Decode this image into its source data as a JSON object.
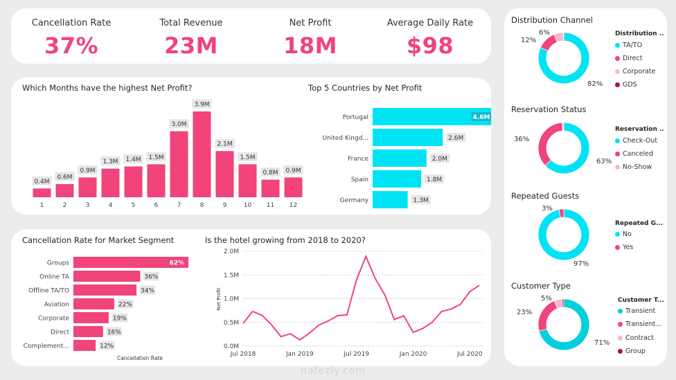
{
  "kpis": [
    {
      "label": "Cancellation Rate",
      "value": "37%"
    },
    {
      "label": "Total Revenue",
      "value": "23M"
    },
    {
      "label": "Net Profit",
      "value": "18M"
    },
    {
      "label": "Average Daily Rate",
      "value": "$98"
    }
  ],
  "colors": {
    "pink": "#f0447a",
    "cyan": "#00e3f5",
    "lightpink": "#f9b6cd",
    "maroon": "#a31545",
    "teal": "#00cfdd"
  },
  "chart_data": [
    {
      "id": "months",
      "type": "bar",
      "title": "Which Months have the highest Net Profit?",
      "categories": [
        "1",
        "2",
        "3",
        "4",
        "5",
        "6",
        "7",
        "8",
        "9",
        "10",
        "11",
        "12"
      ],
      "values": [
        0.4,
        0.6,
        0.9,
        1.3,
        1.4,
        1.5,
        3.0,
        3.9,
        2.1,
        1.5,
        0.8,
        0.9
      ],
      "labels": [
        "0.4M",
        "0.6M",
        "0.9M",
        "1.3M",
        "1.4M",
        "1.5M",
        "3.0M",
        "3.9M",
        "2.1M",
        "1.5M",
        "0.8M",
        "0.9M"
      ],
      "ylim": [
        0,
        3.9
      ]
    },
    {
      "id": "countries",
      "type": "bar",
      "orientation": "horizontal",
      "title": "Top 5 Countries by Net Profit",
      "categories": [
        "Portugal",
        "United Kingd...",
        "France",
        "Spain",
        "Germany"
      ],
      "values": [
        4.6,
        2.6,
        2.0,
        1.8,
        1.3
      ],
      "labels": [
        "4.6M",
        "2.6M",
        "2.0M",
        "1.8M",
        "1.3M"
      ],
      "xlim": [
        0,
        4.6
      ]
    },
    {
      "id": "segments",
      "type": "bar",
      "orientation": "horizontal",
      "title": "Cancellation Rate for Market Segment",
      "xlabel": "Cancellation Rate",
      "categories": [
        "Groups",
        "Online TA",
        "Offline TA/TO",
        "Aviation",
        "Corporate",
        "Direct",
        "Complement..."
      ],
      "values": [
        62,
        36,
        34,
        22,
        19,
        16,
        12
      ],
      "labels": [
        "62%",
        "36%",
        "34%",
        "22%",
        "19%",
        "16%",
        "12%"
      ],
      "xlim": [
        0,
        62
      ]
    },
    {
      "id": "growth",
      "type": "line",
      "title": "Is the hotel growing from 2018 to 2020?",
      "ylabel": "Net Profit",
      "xticks": [
        "Jul 2018",
        "Jan 2019",
        "Jul 2019",
        "Jan 2020",
        "Jul 2020"
      ],
      "yticks": [
        "0.0M",
        "0.5M",
        "1.0M",
        "1.5M",
        "2.0M"
      ],
      "ylim": [
        0,
        2.0
      ],
      "x": [
        "2018-07",
        "2018-08",
        "2018-09",
        "2018-10",
        "2018-11",
        "2018-12",
        "2019-01",
        "2019-02",
        "2019-03",
        "2019-04",
        "2019-05",
        "2019-06",
        "2019-07",
        "2019-08",
        "2019-09",
        "2019-10",
        "2019-11",
        "2019-12",
        "2020-01",
        "2020-02",
        "2020-03",
        "2020-04",
        "2020-05",
        "2020-06",
        "2020-07",
        "2020-08"
      ],
      "y": [
        0.48,
        0.73,
        0.65,
        0.45,
        0.2,
        0.26,
        0.13,
        0.27,
        0.44,
        0.53,
        0.64,
        0.66,
        1.4,
        1.89,
        1.42,
        1.08,
        0.56,
        0.64,
        0.29,
        0.37,
        0.5,
        0.73,
        0.78,
        0.88,
        1.15,
        1.28
      ]
    },
    {
      "id": "distribution",
      "type": "pie",
      "title": "Distribution Channel",
      "legend_title": "Distribution ...",
      "categories": [
        "TA/TO",
        "Direct",
        "Corporate",
        "GDS"
      ],
      "values": [
        82,
        12,
        6,
        0.2
      ],
      "labels": [
        "82%",
        "12%",
        "6%"
      ]
    },
    {
      "id": "reservation",
      "type": "pie",
      "title": "Reservation Status",
      "legend_title": "Reservation ...",
      "categories": [
        "Check-Out",
        "Canceled",
        "No-Show"
      ],
      "values": [
        63,
        36,
        1
      ],
      "labels": [
        "63%",
        "36%"
      ]
    },
    {
      "id": "repeated",
      "type": "pie",
      "title": "Repeated Guests",
      "legend_title": "Repeated G...",
      "categories": [
        "No",
        "Yes"
      ],
      "values": [
        97,
        3
      ],
      "labels": [
        "97%",
        "3%"
      ]
    },
    {
      "id": "customer",
      "type": "pie",
      "title": "Customer Type",
      "legend_title": "Customer T...",
      "categories": [
        "Transient",
        "Transient...",
        "Contract",
        "Group"
      ],
      "values": [
        71,
        23,
        5,
        1
      ],
      "labels": [
        "71%",
        "23%",
        "5%"
      ]
    }
  ],
  "watermark": "nafezly.com"
}
